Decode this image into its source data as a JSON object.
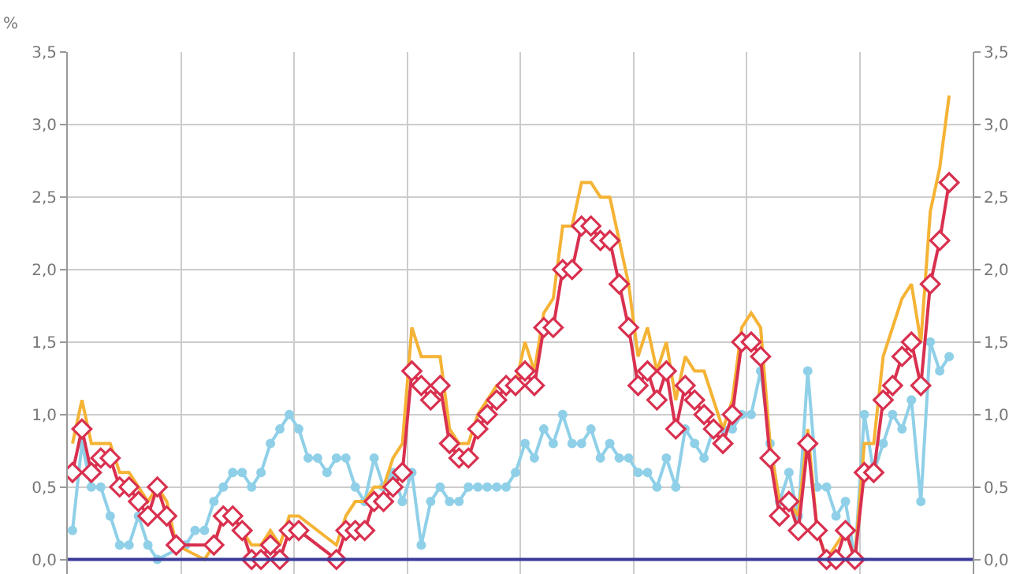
{
  "chart_data": {
    "type": "line",
    "ylabel": "%",
    "categories": [
      null,
      null,
      null,
      null,
      null,
      null,
      null,
      null,
      null,
      null,
      null,
      null,
      null,
      null,
      null,
      null,
      null,
      null,
      null,
      null,
      null,
      null,
      null,
      null,
      null,
      null,
      null,
      null,
      null,
      null,
      null,
      null,
      null,
      null,
      null,
      null,
      null,
      null,
      null,
      null,
      null,
      null,
      null,
      null,
      null,
      null,
      null,
      null,
      null,
      null,
      null,
      null,
      null,
      null,
      null,
      null,
      null,
      null,
      null,
      null,
      null,
      null,
      null,
      null,
      null,
      null,
      null,
      null,
      null,
      null,
      null,
      null,
      null,
      null,
      null,
      null,
      null,
      null,
      null,
      null,
      null,
      null,
      null,
      null,
      null,
      null,
      null,
      null,
      null,
      null,
      null,
      null,
      null,
      null,
      null,
      null
    ],
    "series": [
      {
        "color": "#8fd0e8",
        "marker": "circle",
        "values": [
          0.2,
          0.8,
          0.5,
          0.5,
          0.3,
          0.1,
          0.1,
          0.3,
          0.1,
          0.0,
          null,
          null,
          0.1,
          0.2,
          0.2,
          0.4,
          0.5,
          0.6,
          0.6,
          0.5,
          0.6,
          0.8,
          0.9,
          1.0,
          0.9,
          0.7,
          0.7,
          0.6,
          0.7,
          0.7,
          0.5,
          0.4,
          0.7,
          0.5,
          0.6,
          0.4,
          0.6,
          0.1,
          0.4,
          0.5,
          0.4,
          0.4,
          0.5,
          0.5,
          0.5,
          0.5,
          0.5,
          0.6,
          0.8,
          0.7,
          0.9,
          0.8,
          1.0,
          0.8,
          0.8,
          0.9,
          0.7,
          0.8,
          0.7,
          0.7,
          0.6,
          0.6,
          0.5,
          0.7,
          0.5,
          0.9,
          0.8,
          0.7,
          0.9,
          0.9,
          0.9,
          1.0,
          1.0,
          1.3,
          0.8,
          0.4,
          0.6,
          0.3,
          1.3,
          0.5,
          0.5,
          0.3,
          0.4,
          0.0,
          1.0,
          0.6,
          0.8,
          1.0,
          0.9,
          1.1,
          0.4,
          1.5,
          1.3,
          1.4,
          null,
          null
        ]
      },
      {
        "color": "#f5b335",
        "marker": "none",
        "values": [
          0.8,
          1.1,
          0.8,
          0.8,
          0.8,
          0.6,
          0.6,
          0.5,
          0.4,
          0.5,
          0.4,
          0.1,
          null,
          null,
          0.0,
          0.1,
          0.3,
          0.3,
          0.2,
          0.1,
          0.1,
          0.2,
          0.1,
          0.3,
          0.3,
          null,
          null,
          null,
          0.1,
          0.3,
          0.4,
          0.4,
          0.5,
          0.5,
          0.7,
          0.8,
          1.6,
          1.4,
          1.4,
          1.4,
          0.9,
          0.8,
          0.8,
          1.0,
          1.1,
          1.2,
          1.2,
          1.2,
          1.5,
          1.3,
          1.7,
          1.8,
          2.3,
          2.3,
          2.6,
          2.6,
          2.5,
          2.5,
          2.2,
          1.9,
          1.4,
          1.6,
          1.3,
          1.5,
          1.1,
          1.4,
          1.3,
          1.3,
          1.1,
          0.9,
          1.1,
          1.6,
          1.7,
          1.6,
          0.8,
          0.4,
          0.4,
          0.3,
          0.9,
          0.2,
          0.0,
          0.1,
          0.2,
          0.0,
          0.8,
          0.8,
          1.4,
          1.6,
          1.8,
          1.9,
          1.5,
          2.4,
          2.7,
          3.2,
          null,
          null
        ]
      },
      {
        "color": "#d9304f",
        "marker": "diamond",
        "values": [
          0.6,
          0.9,
          0.6,
          0.7,
          0.7,
          0.5,
          0.5,
          0.4,
          0.3,
          0.5,
          0.3,
          0.1,
          null,
          null,
          null,
          0.1,
          0.3,
          0.3,
          0.2,
          0.0,
          0.0,
          0.1,
          0.0,
          0.2,
          0.2,
          null,
          null,
          null,
          0.0,
          0.2,
          0.2,
          0.2,
          0.4,
          0.4,
          0.5,
          0.6,
          1.3,
          1.2,
          1.1,
          1.2,
          0.8,
          0.7,
          0.7,
          0.9,
          1.0,
          1.1,
          1.2,
          1.2,
          1.3,
          1.2,
          1.6,
          1.6,
          2.0,
          2.0,
          2.3,
          2.3,
          2.2,
          2.2,
          1.9,
          1.6,
          1.2,
          1.3,
          1.1,
          1.3,
          0.9,
          1.2,
          1.1,
          1.0,
          0.9,
          0.8,
          1.0,
          1.5,
          1.5,
          1.4,
          0.7,
          0.3,
          0.4,
          0.2,
          0.8,
          0.2,
          0.0,
          0.0,
          0.2,
          0.0,
          0.6,
          0.6,
          1.1,
          1.2,
          1.4,
          1.5,
          1.2,
          1.9,
          2.2,
          2.6,
          null,
          null
        ]
      }
    ],
    "ylim": [
      -0.1,
      3.5
    ],
    "yticks": [
      {
        "value": 0,
        "label": "0,0"
      },
      {
        "value": 0.5,
        "label": "0,5"
      },
      {
        "value": 1,
        "label": "1,0"
      },
      {
        "value": 1.5,
        "label": "1,5"
      },
      {
        "value": 2,
        "label": "2,0"
      },
      {
        "value": 2.5,
        "label": "2,5"
      },
      {
        "value": 3,
        "label": "3,0"
      },
      {
        "value": 3.5,
        "label": "3,5"
      }
    ],
    "y2lim": [
      -0.1,
      3.5
    ],
    "y2ticks": [
      {
        "value": 0,
        "label": "0,0"
      },
      {
        "value": 0.5,
        "label": "0,5"
      },
      {
        "value": 1,
        "label": "1,0"
      },
      {
        "value": 1.5,
        "label": "1,5"
      },
      {
        "value": 2,
        "label": "2,0"
      },
      {
        "value": 2.5,
        "label": "2,5"
      },
      {
        "value": 3,
        "label": "3,0"
      },
      {
        "value": 3.5,
        "label": "3,5"
      }
    ],
    "ref_lines": [
      {
        "axis": "y",
        "value": 0,
        "color": "#3b3b9a"
      }
    ],
    "grid": true,
    "legend": false,
    "tick_labels": "y"
  }
}
